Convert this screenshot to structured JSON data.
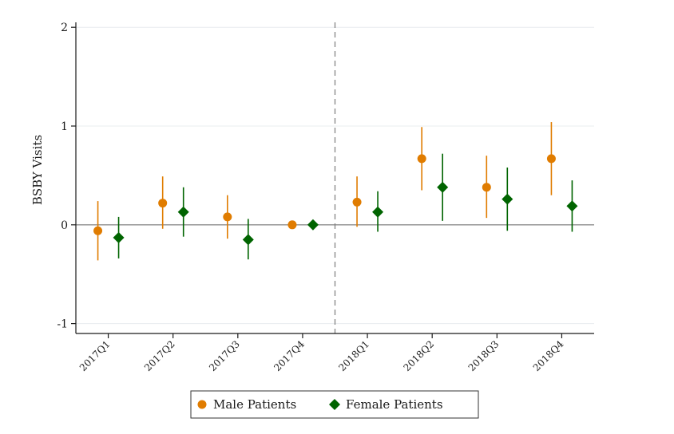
{
  "chart_data": {
    "type": "scatter",
    "subtype": "point-estimate-with-confidence-interval",
    "title": "",
    "xlabel": "",
    "ylabel": "BSBY Visits",
    "categories": [
      "2017Q1",
      "2017Q2",
      "2017Q3",
      "2017Q4",
      "2018Q1",
      "2018Q2",
      "2018Q3",
      "2018Q4"
    ],
    "ylim": [
      -1.1,
      2.05
    ],
    "yticks": [
      -1,
      0,
      1,
      2
    ],
    "ytick_labels": [
      "-1",
      "0",
      "1",
      "2"
    ],
    "grid": "horizontal",
    "reference_line_y": 0,
    "vertical_reference_after_category": "2017Q4",
    "legend_position": "bottom",
    "series": [
      {
        "name": "Male Patients",
        "marker": "circle",
        "color": "#E07C00",
        "values": [
          -0.06,
          0.22,
          0.08,
          0.0,
          0.23,
          0.67,
          0.38,
          0.67
        ],
        "ci_low": [
          -0.36,
          -0.04,
          -0.14,
          0.0,
          -0.02,
          0.35,
          0.07,
          0.3
        ],
        "ci_high": [
          0.24,
          0.49,
          0.3,
          0.0,
          0.49,
          0.99,
          0.7,
          1.04
        ]
      },
      {
        "name": "Female Patients",
        "marker": "diamond",
        "color": "#006400",
        "values": [
          -0.13,
          0.13,
          -0.15,
          0.0,
          0.13,
          0.38,
          0.26,
          0.19
        ],
        "ci_low": [
          -0.34,
          -0.12,
          -0.35,
          0.0,
          -0.07,
          0.04,
          -0.06,
          -0.07
        ],
        "ci_high": [
          0.08,
          0.38,
          0.06,
          0.0,
          0.34,
          0.72,
          0.58,
          0.45
        ]
      }
    ]
  }
}
